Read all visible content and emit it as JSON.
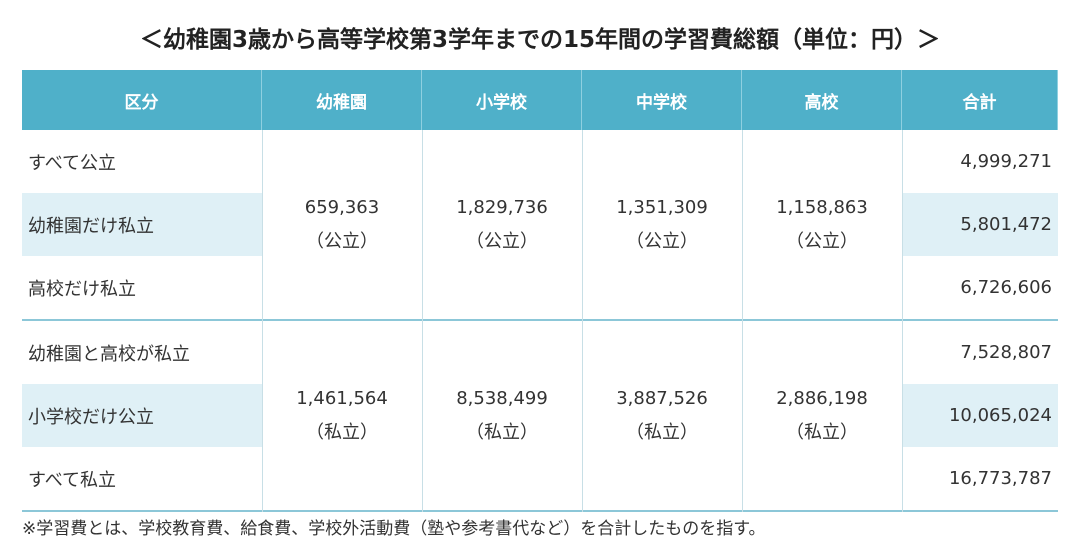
{
  "title": "＜幼稚園3歳から高等学校第3学年までの15年間の学習費総額（単位：円）＞",
  "table": {
    "headers": [
      "区分",
      "幼稚園",
      "小学校",
      "中学校",
      "高校",
      "合計"
    ],
    "groups": [
      {
        "rows": [
          {
            "label": "すべて公立",
            "total": "4,999,271"
          },
          {
            "label": "幼稚園だけ私立",
            "total": "5,801,472"
          },
          {
            "label": "高校だけ私立",
            "total": "6,726,606"
          }
        ],
        "costs": [
          {
            "value": "659,363",
            "type": "（公立）"
          },
          {
            "value": "1,829,736",
            "type": "（公立）"
          },
          {
            "value": "1,351,309",
            "type": "（公立）"
          },
          {
            "value": "1,158,863",
            "type": "（公立）"
          }
        ]
      },
      {
        "rows": [
          {
            "label": "幼稚園と高校が私立",
            "total": "7,528,807"
          },
          {
            "label": "小学校だけ公立",
            "total": "10,065,024"
          },
          {
            "label": "すべて私立",
            "total": "16,773,787"
          }
        ],
        "costs": [
          {
            "value": "1,461,564",
            "type": "（私立）"
          },
          {
            "value": "8,538,499",
            "type": "（私立）"
          },
          {
            "value": "3,887,526",
            "type": "（私立）"
          },
          {
            "value": "2,886,198",
            "type": "（私立）"
          }
        ]
      }
    ]
  },
  "footnote": "※学習費とは、学校教育費、給食費、学校外活動費（塾や参考書代など）を合計したものを指す。"
}
